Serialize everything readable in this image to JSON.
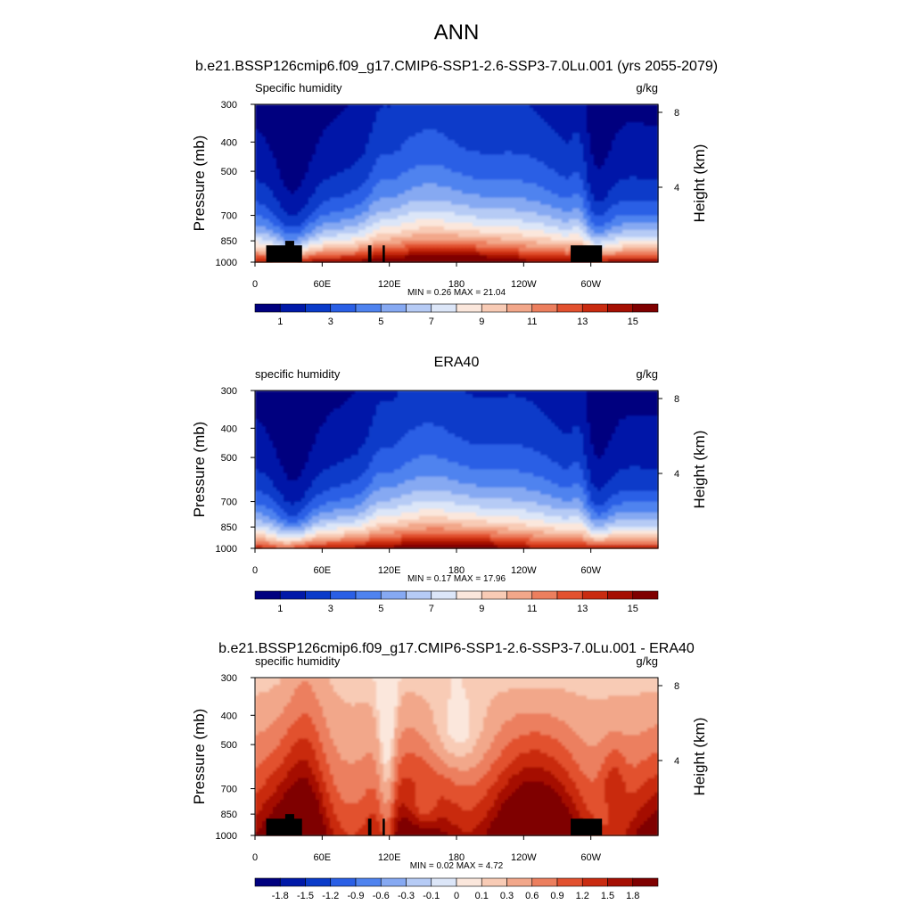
{
  "figure": {
    "title": "ANN",
    "subtitle": "b.e21.BSSP126cmip6.f09_g17.CMIP6-SSP1-2.6-SSP3-7.0Lu.001 (yrs 2055-2079)"
  },
  "colors": {
    "abs_levels": [
      "#00007f",
      "#0019a8",
      "#0a3bc9",
      "#2a5fe5",
      "#4f83ef",
      "#86a9f2",
      "#b6cbf5",
      "#dce6f8",
      "#fbe7dc",
      "#f8cbb5",
      "#f2a78a",
      "#ec7f5e",
      "#e2512f",
      "#c92b10",
      "#a50f03",
      "#7f0000"
    ],
    "diff_levels": [
      "#00007f",
      "#0019a8",
      "#0a3bc9",
      "#2a5fe5",
      "#4f83ef",
      "#86a9f2",
      "#b6cbf5",
      "#dce6f8",
      "#fbe7dc",
      "#f8cbb5",
      "#f2a78a",
      "#ec7f5e",
      "#e2512f",
      "#c92b10",
      "#a50f03",
      "#7f0000"
    ],
    "land": "#000000"
  },
  "chart_data": [
    {
      "type": "heatmap",
      "panel_title": "",
      "left_label": "Specific humidity",
      "right_label": "g/kg",
      "ylabel": "Pressure (mb)",
      "y2label": "Height (km)",
      "xticks": [
        "0",
        "60E",
        "120E",
        "180",
        "120W",
        "60W"
      ],
      "xtick_lon": [
        0,
        60,
        120,
        180,
        240,
        300
      ],
      "xlim": [
        0,
        360
      ],
      "yticks": [
        "300",
        "400",
        "500",
        "700",
        "850",
        "1000"
      ],
      "ytick_p": [
        300,
        400,
        500,
        700,
        850,
        1000
      ],
      "ylim": [
        300,
        1000
      ],
      "y2ticks": [
        "8",
        "4"
      ],
      "y2tick_km": [
        8,
        4
      ],
      "stats": "MIN =   0.26  MAX =  21.04",
      "min": 0.26,
      "max": 21.04,
      "colorbar_labels": [
        "1",
        "3",
        "5",
        "7",
        "9",
        "11",
        "13",
        "15"
      ],
      "field": "abs",
      "land_blocks": [
        [
          10,
          42,
          880
        ],
        [
          27,
          35,
          850
        ],
        [
          101,
          104,
          880
        ],
        [
          114,
          116,
          880
        ],
        [
          282,
          310,
          880
        ]
      ]
    },
    {
      "type": "heatmap",
      "panel_title": "ERA40",
      "left_label": "specific humidity",
      "right_label": "g/kg",
      "ylabel": "Pressure (mb)",
      "y2label": "Height (km)",
      "xticks": [
        "0",
        "60E",
        "120E",
        "180",
        "120W",
        "60W"
      ],
      "xtick_lon": [
        0,
        60,
        120,
        180,
        240,
        300
      ],
      "xlim": [
        0,
        360
      ],
      "yticks": [
        "300",
        "400",
        "500",
        "700",
        "850",
        "1000"
      ],
      "ytick_p": [
        300,
        400,
        500,
        700,
        850,
        1000
      ],
      "ylim": [
        300,
        1000
      ],
      "y2ticks": [
        "8",
        "4"
      ],
      "y2tick_km": [
        8,
        4
      ],
      "stats": "MIN =   0.17  MAX =  17.96",
      "min": 0.17,
      "max": 17.96,
      "colorbar_labels": [
        "1",
        "3",
        "5",
        "7",
        "9",
        "11",
        "13",
        "15"
      ],
      "field": "abs",
      "land_blocks": []
    },
    {
      "type": "heatmap",
      "panel_title": "b.e21.BSSP126cmip6.f09_g17.CMIP6-SSP1-2.6-SSP3-7.0Lu.001 - ERA40",
      "left_label": "specific humidity",
      "right_label": "g/kg",
      "ylabel": "Pressure (mb)",
      "y2label": "Height (km)",
      "xticks": [
        "0",
        "60E",
        "120E",
        "180",
        "120W",
        "60W"
      ],
      "xtick_lon": [
        0,
        60,
        120,
        180,
        240,
        300
      ],
      "xlim": [
        0,
        360
      ],
      "yticks": [
        "300",
        "400",
        "500",
        "700",
        "850",
        "1000"
      ],
      "ytick_p": [
        300,
        400,
        500,
        700,
        850,
        1000
      ],
      "ylim": [
        300,
        1000
      ],
      "y2ticks": [
        "8",
        "4"
      ],
      "y2tick_km": [
        8,
        4
      ],
      "stats": "MIN =   0.02  MAX =   4.72",
      "min": 0.02,
      "max": 4.72,
      "colorbar_labels": [
        "-1.8",
        "-1.5",
        "-1.2",
        "-0.9",
        "-0.6",
        "-0.3",
        "-0.1",
        "0",
        "0.1",
        "0.3",
        "0.6",
        "0.9",
        "1.2",
        "1.5",
        "1.8"
      ],
      "field": "diff",
      "land_blocks": [
        [
          10,
          42,
          880
        ],
        [
          27,
          35,
          850
        ],
        [
          101,
          104,
          880
        ],
        [
          114,
          116,
          880
        ],
        [
          282,
          310,
          880
        ]
      ]
    }
  ]
}
